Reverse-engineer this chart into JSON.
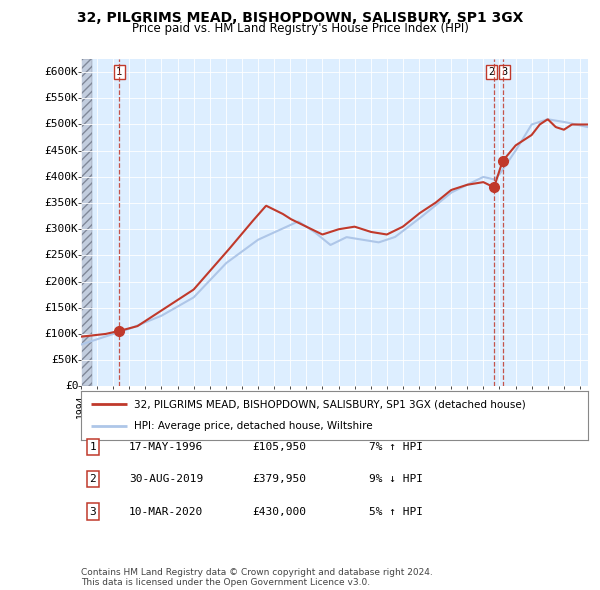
{
  "title_line1": "32, PILGRIMS MEAD, BISHOPDOWN, SALISBURY, SP1 3GX",
  "title_line2": "Price paid vs. HM Land Registry's House Price Index (HPI)",
  "ylim": [
    0,
    625000
  ],
  "xlim_start": 1994.0,
  "xlim_end": 2025.5,
  "yticks": [
    0,
    50000,
    100000,
    150000,
    200000,
    250000,
    300000,
    350000,
    400000,
    450000,
    500000,
    550000,
    600000
  ],
  "ytick_labels": [
    "£0",
    "£50K",
    "£100K",
    "£150K",
    "£200K",
    "£250K",
    "£300K",
    "£350K",
    "£400K",
    "£450K",
    "£500K",
    "£550K",
    "£600K"
  ],
  "hpi_color": "#aec6e8",
  "price_color": "#c0392b",
  "dot_color": "#c0392b",
  "sale_dates": [
    1996.38,
    2019.66,
    2020.19
  ],
  "sale_prices": [
    105950,
    379950,
    430000
  ],
  "sale_labels": [
    "1",
    "2",
    "3"
  ],
  "legend_line1": "32, PILGRIMS MEAD, BISHOPDOWN, SALISBURY, SP1 3GX (detached house)",
  "legend_line2": "HPI: Average price, detached house, Wiltshire",
  "table_rows": [
    [
      "1",
      "17-MAY-1996",
      "£105,950",
      "7% ↑ HPI"
    ],
    [
      "2",
      "30-AUG-2019",
      "£379,950",
      "9% ↓ HPI"
    ],
    [
      "3",
      "10-MAR-2020",
      "£430,000",
      "5% ↑ HPI"
    ]
  ],
  "footnote": "Contains HM Land Registry data © Crown copyright and database right 2024.\nThis data is licensed under the Open Government Licence v3.0.",
  "plot_bg": "#ddeeff",
  "hatch_color": "#b0b8c8"
}
